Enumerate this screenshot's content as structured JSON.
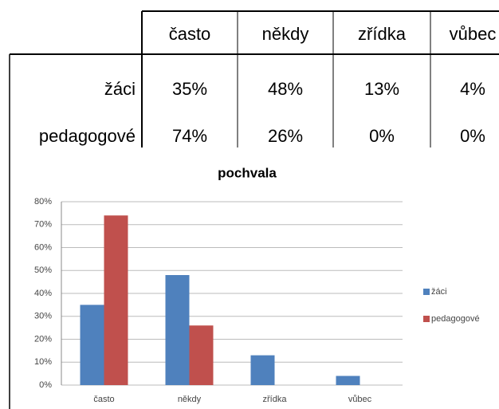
{
  "table": {
    "header": [
      "často",
      "někdy",
      "zřídka",
      "vůbec"
    ],
    "rows": [
      [
        "žáci",
        "35%",
        "48%",
        "13%",
        "4%"
      ],
      [
        "pedagogové",
        "74%",
        "26%",
        "0%",
        "0%"
      ]
    ]
  },
  "chart_data": {
    "type": "bar",
    "title": "pochvala",
    "categories": [
      "často",
      "někdy",
      "zřídka",
      "vůbec"
    ],
    "series": [
      {
        "name": "žáci",
        "color": "#4f81bd",
        "values": [
          35,
          48,
          13,
          4
        ]
      },
      {
        "name": "pedagogové",
        "color": "#c0504d",
        "values": [
          74,
          26,
          0,
          0
        ]
      }
    ],
    "ylim": [
      0,
      80
    ],
    "yticks": [
      {
        "value": 0,
        "label": "0%"
      },
      {
        "value": 10,
        "label": "10%"
      },
      {
        "value": 20,
        "label": "20%"
      },
      {
        "value": 30,
        "label": "30%"
      },
      {
        "value": 40,
        "label": "40%"
      },
      {
        "value": 50,
        "label": "50%"
      },
      {
        "value": 60,
        "label": "60%"
      },
      {
        "value": 70,
        "label": "70%"
      },
      {
        "value": 80,
        "label": "80%"
      }
    ],
    "grid": true,
    "legend": "right"
  }
}
